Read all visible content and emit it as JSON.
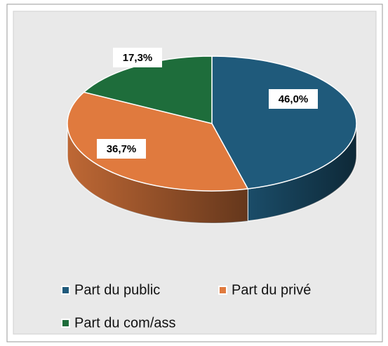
{
  "chart_data": {
    "type": "pie",
    "categories": [
      "Part du public",
      "Part du privé",
      "Part du com/ass"
    ],
    "values": [
      46.0,
      36.7,
      17.3
    ],
    "value_labels": [
      "46,0%",
      "36,7%",
      "17,3%"
    ],
    "colors": [
      "#1f5a7b",
      "#e07a3e",
      "#1e6d3b"
    ],
    "legend": "bottom"
  }
}
